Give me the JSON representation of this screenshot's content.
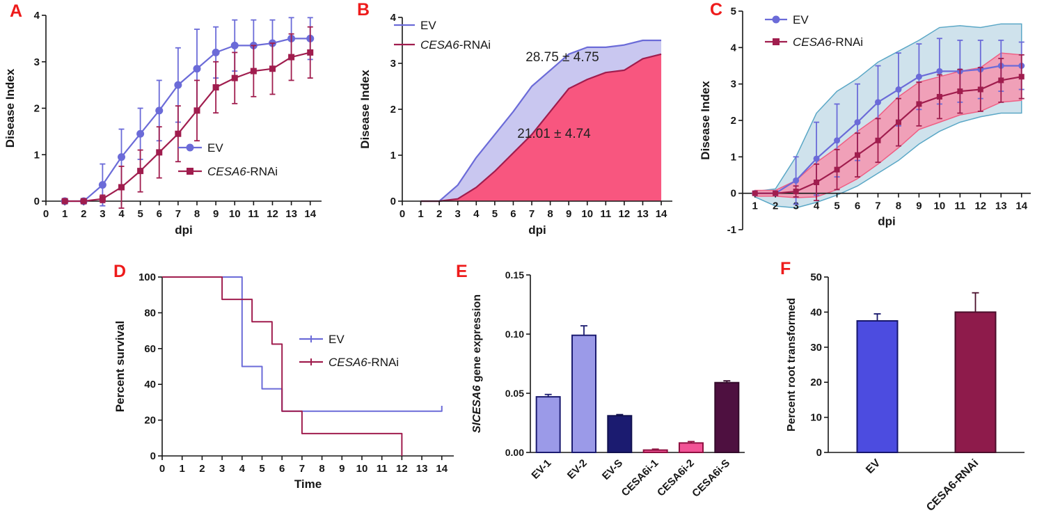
{
  "figure": {
    "panels": [
      {
        "label": "A"
      },
      {
        "label": "B"
      },
      {
        "label": "C"
      },
      {
        "label": "D"
      },
      {
        "label": "E"
      },
      {
        "label": "F"
      }
    ]
  },
  "colors": {
    "panel_label": "#ee1b1b",
    "axis": "#161616",
    "ev_blue": "#6b6bd8",
    "rnai_red": "#a01d4e",
    "ev_area_fill": "#c9c7f0",
    "rnai_area_fill": "#f8567f"
  },
  "chart_data": [
    {
      "id": "A",
      "type": "line",
      "xlabel": "dpi",
      "ylabel": "Disease Index",
      "xlim": [
        0,
        14.6
      ],
      "ylim": [
        0,
        4
      ],
      "xticks": [
        0,
        1,
        2,
        3,
        4,
        5,
        6,
        7,
        8,
        9,
        10,
        11,
        12,
        13,
        14
      ],
      "yticks": [
        0,
        1,
        2,
        3,
        4
      ],
      "x": [
        1,
        2,
        3,
        4,
        5,
        6,
        7,
        8,
        9,
        10,
        11,
        12,
        13,
        14
      ],
      "legend_position": "inside-right",
      "series": [
        {
          "name": "EV",
          "name_parts": [
            {
              "t": "EV"
            }
          ],
          "marker": "circle",
          "color": "#6b6bd8",
          "values": [
            0,
            0,
            0.35,
            0.95,
            1.45,
            1.95,
            2.5,
            2.85,
            3.2,
            3.35,
            3.35,
            3.4,
            3.5,
            3.5
          ],
          "errors": [
            0,
            0,
            0.45,
            0.6,
            0.55,
            0.65,
            0.8,
            0.85,
            0.55,
            0.55,
            0.55,
            0.5,
            0.45,
            0.45
          ]
        },
        {
          "name": "CESA6-RNAi",
          "name_parts": [
            {
              "t": "CESA6",
              "i": true
            },
            {
              "t": "-RNAi"
            }
          ],
          "marker": "square",
          "color": "#a01d4e",
          "values": [
            0,
            0,
            0.05,
            0.3,
            0.65,
            1.05,
            1.45,
            1.95,
            2.45,
            2.65,
            2.8,
            2.85,
            3.1,
            3.2
          ],
          "errors": [
            0,
            0,
            0.08,
            0.45,
            0.45,
            0.55,
            0.6,
            0.65,
            0.55,
            0.55,
            0.55,
            0.55,
            0.5,
            0.55
          ]
        }
      ]
    },
    {
      "id": "B",
      "type": "area",
      "xlabel": "dpi",
      "ylabel": "Disease Index",
      "xlim": [
        0,
        14.6
      ],
      "ylim": [
        0,
        4
      ],
      "xticks": [
        0,
        1,
        2,
        3,
        4,
        5,
        6,
        7,
        8,
        9,
        10,
        11,
        12,
        13,
        14
      ],
      "yticks": [
        0,
        1,
        2,
        3,
        4
      ],
      "x": [
        1,
        2,
        3,
        4,
        5,
        6,
        7,
        8,
        9,
        10,
        11,
        12,
        13,
        14
      ],
      "legend_position": "top-left",
      "series": [
        {
          "name": "EV",
          "name_parts": [
            {
              "t": "EV"
            }
          ],
          "color": "#6b6bd8",
          "fill": "#c9c7f0",
          "values": [
            0,
            0,
            0.35,
            0.95,
            1.45,
            1.95,
            2.5,
            2.85,
            3.2,
            3.35,
            3.35,
            3.4,
            3.5,
            3.5
          ],
          "area_label": "28.75 ± 4.75"
        },
        {
          "name": "CESA6-RNAi",
          "name_parts": [
            {
              "t": "CESA6",
              "i": true
            },
            {
              "t": "-RNAi"
            }
          ],
          "color": "#a01d4e",
          "fill": "#f8567f",
          "values": [
            0,
            0,
            0.05,
            0.3,
            0.65,
            1.05,
            1.45,
            1.95,
            2.45,
            2.65,
            2.8,
            2.85,
            3.1,
            3.2
          ],
          "area_label": "21.01 ± 4.74"
        }
      ]
    },
    {
      "id": "C",
      "type": "line-envelope",
      "xlabel": "dpi",
      "ylabel": "Disease Index",
      "xlim": [
        0.4,
        14.45
      ],
      "ylim": [
        -1,
        5
      ],
      "xticks": [
        1,
        2,
        3,
        4,
        5,
        6,
        7,
        8,
        9,
        10,
        11,
        12,
        13,
        14
      ],
      "yticks": [
        -1,
        0,
        1,
        2,
        3,
        4,
        5
      ],
      "x": [
        1,
        2,
        3,
        4,
        5,
        6,
        7,
        8,
        9,
        10,
        11,
        12,
        13,
        14
      ],
      "legend_position": "top-left",
      "series": [
        {
          "name": "EV",
          "name_parts": [
            {
              "t": "EV"
            }
          ],
          "marker": "circle",
          "color": "#6b6bd8",
          "values": [
            0,
            0,
            0.35,
            0.95,
            1.45,
            1.95,
            2.5,
            2.85,
            3.2,
            3.35,
            3.35,
            3.4,
            3.5,
            3.5
          ],
          "errors": [
            0,
            0.05,
            0.65,
            1.0,
            1.0,
            1.05,
            1.0,
            1.0,
            0.9,
            0.9,
            0.85,
            0.8,
            0.7,
            0.65
          ],
          "env_fill": "#c3dbe7",
          "env_stroke": "#5aa7c6",
          "env_hi": [
            0.05,
            0.12,
            1.0,
            2.2,
            2.8,
            3.15,
            3.6,
            3.9,
            4.2,
            4.55,
            4.6,
            4.55,
            4.65,
            4.65
          ],
          "env_lo": [
            -0.1,
            -0.35,
            -0.4,
            -0.25,
            -0.05,
            0.2,
            0.55,
            0.9,
            1.35,
            1.7,
            1.95,
            2.1,
            2.2,
            2.2
          ]
        },
        {
          "name": "CESA6-RNAi",
          "name_parts": [
            {
              "t": "CESA6",
              "i": true
            },
            {
              "t": "-RNAi"
            }
          ],
          "marker": "square",
          "color": "#a01d4e",
          "values": [
            0,
            0,
            0.05,
            0.3,
            0.65,
            1.05,
            1.45,
            1.95,
            2.45,
            2.65,
            2.8,
            2.85,
            3.1,
            3.2
          ],
          "errors": [
            0,
            0,
            0.15,
            0.5,
            0.55,
            0.6,
            0.6,
            0.65,
            0.6,
            0.6,
            0.6,
            0.6,
            0.6,
            0.6
          ],
          "env_fill": "#f890ab",
          "env_stroke": "#ef5f84",
          "env_hi": [
            0.08,
            0.08,
            0.35,
            0.85,
            1.25,
            1.7,
            2.1,
            2.65,
            3.05,
            3.2,
            3.35,
            3.45,
            3.85,
            3.8
          ],
          "env_lo": [
            -0.08,
            -0.08,
            -0.12,
            -0.1,
            0.1,
            0.4,
            0.8,
            1.25,
            1.75,
            1.95,
            2.15,
            2.25,
            2.5,
            2.55
          ]
        }
      ]
    },
    {
      "id": "D",
      "type": "step",
      "xlabel": "Time",
      "ylabel": "Percent survival",
      "xlim": [
        0,
        14.6
      ],
      "ylim": [
        0,
        100
      ],
      "xticks": [
        0,
        1,
        2,
        3,
        4,
        5,
        6,
        7,
        8,
        9,
        10,
        11,
        12,
        13,
        14
      ],
      "yticks": [
        0,
        20,
        40,
        60,
        80,
        100
      ],
      "legend_position": "middle-right",
      "series": [
        {
          "name": "EV",
          "name_parts": [
            {
              "t": "EV"
            }
          ],
          "color": "#6b6bd8",
          "points": [
            [
              0,
              100
            ],
            [
              4,
              100
            ],
            [
              4,
              50
            ],
            [
              5,
              50
            ],
            [
              5,
              37.5
            ],
            [
              6,
              37.5
            ],
            [
              6,
              25
            ],
            [
              14,
              25
            ],
            [
              14,
              28
            ]
          ]
        },
        {
          "name": "CESA6-RNAi",
          "name_parts": [
            {
              "t": "CESA6",
              "i": true
            },
            {
              "t": "-RNAi"
            }
          ],
          "color": "#a01d4e",
          "points": [
            [
              0,
              100
            ],
            [
              3,
              100
            ],
            [
              3,
              87.5
            ],
            [
              4.5,
              87.5
            ],
            [
              4.5,
              75
            ],
            [
              5.5,
              75
            ],
            [
              5.5,
              62.5
            ],
            [
              6,
              62.5
            ],
            [
              6,
              25
            ],
            [
              7,
              25
            ],
            [
              7,
              12.5
            ],
            [
              12,
              12.5
            ],
            [
              12,
              0
            ]
          ]
        }
      ]
    },
    {
      "id": "E",
      "type": "bar",
      "ylabel": "SlCESA6 gene expression",
      "ylabel_parts": [
        {
          "t": "SlCESA6",
          "i": true
        },
        {
          "t": " gene expression"
        }
      ],
      "ylim": [
        0,
        0.15
      ],
      "yticks": [
        0,
        0.05,
        0.1,
        0.15
      ],
      "categories": [
        "EV-1",
        "EV-2",
        "EV-S",
        "CESA6i-1",
        "CESA6i-2",
        "CESA6i-S"
      ],
      "values": [
        0.047,
        0.099,
        0.031,
        0.002,
        0.008,
        0.059
      ],
      "errors": [
        0.002,
        0.008,
        0.001,
        0.0008,
        0.0012,
        0.0015
      ],
      "colors": [
        "#9b9ae8",
        "#9b9ae8",
        "#1b1b70",
        "#f25396",
        "#f25396",
        "#4e1040"
      ],
      "border_colors": [
        "#1b1b70",
        "#1b1b70",
        "#11114f",
        "#8f1040",
        "#8f1040",
        "#330a2a"
      ]
    },
    {
      "id": "F",
      "type": "bar",
      "ylabel": "Percent root transformed",
      "ylim": [
        0,
        50
      ],
      "yticks": [
        0,
        10,
        20,
        30,
        40,
        50
      ],
      "categories": [
        "EV",
        "CESA6-RNAi"
      ],
      "values": [
        37.5,
        40
      ],
      "errors": [
        2,
        5.5
      ],
      "colors": [
        "#4c4ce0",
        "#8e1b4b"
      ],
      "border_colors": [
        "#16166b",
        "#4a0e2b"
      ]
    }
  ]
}
